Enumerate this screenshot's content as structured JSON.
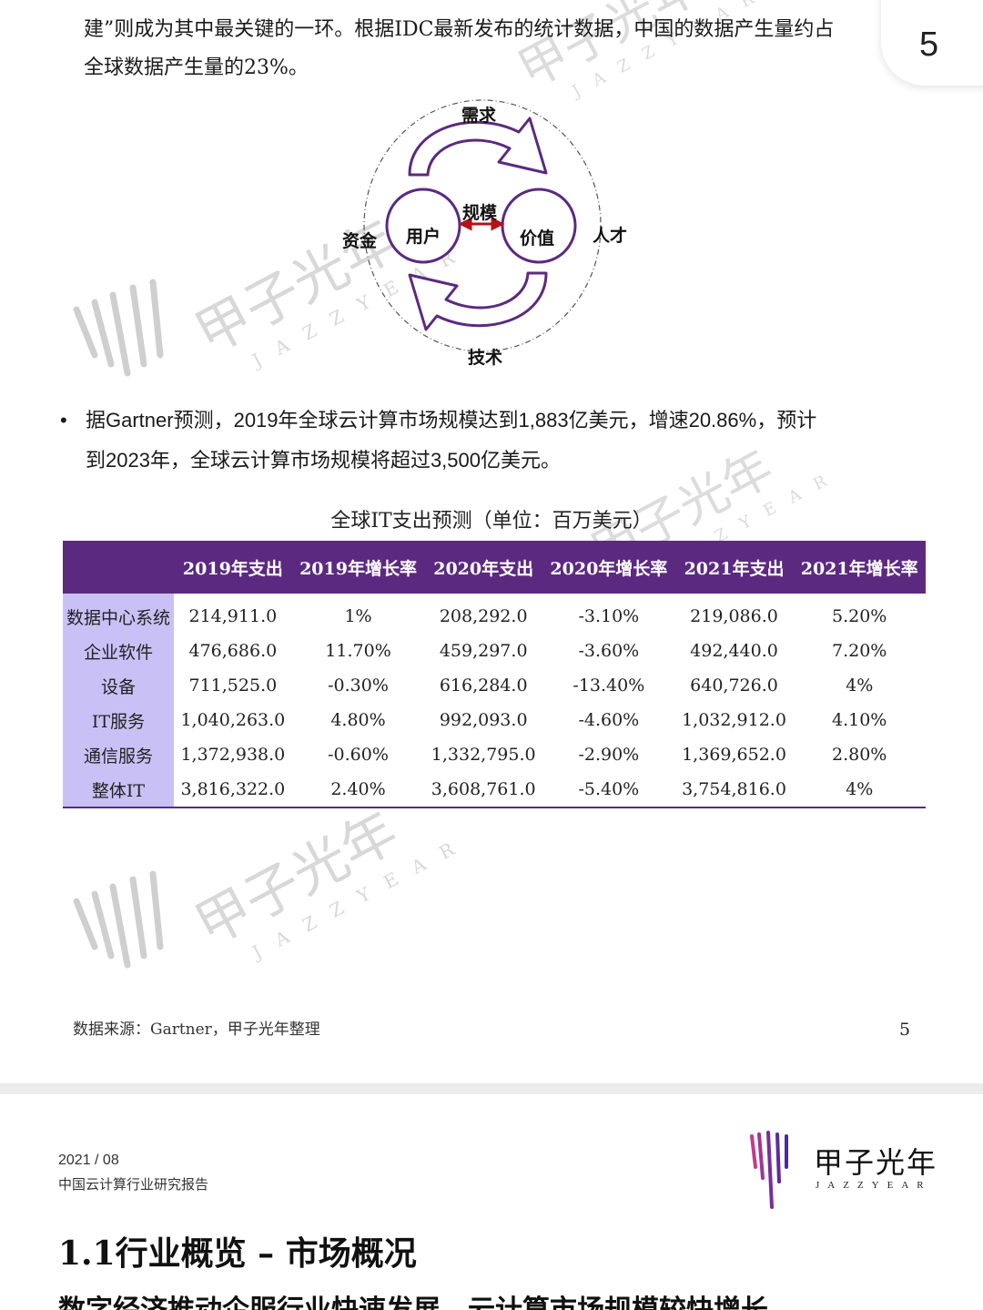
{
  "intro": {
    "line1": "建”则成为其中最关键的一环。根据IDC最新发布的统计数据，中国的数据产生量约占",
    "line2": "全球数据产生量的23%。"
  },
  "page_badge": "5",
  "watermark": {
    "cn": "甲子光年",
    "en": "JAZZYEAR"
  },
  "diagram": {
    "top": "需求",
    "bottom": "技术",
    "left": "资金",
    "right": "人才",
    "node_left": "用户",
    "node_right": "价值",
    "center": "规模",
    "colors": {
      "arrow": "#5b2a80",
      "link": "#b5121b"
    }
  },
  "bullet": {
    "line1": "据Gartner预测，2019年全球云计算市场规模达到1,883亿美元，增速20.86%，预计",
    "line2": "到2023年，全球云计算市场规模将超过3,500亿美元。"
  },
  "table": {
    "title": "全球IT支出预测（单位：百万美元）",
    "headers": [
      "",
      "2019年支出",
      "2019年增长率",
      "2020年支出",
      "2020年增长率",
      "2021年支出",
      "2021年增长率"
    ],
    "rows": [
      [
        "数据中心系统",
        "214,911.0",
        "1%",
        "208,292.0",
        "-3.10%",
        "219,086.0",
        "5.20%"
      ],
      [
        "企业软件",
        "476,686.0",
        "11.70%",
        "459,297.0",
        "-3.60%",
        "492,440.0",
        "7.20%"
      ],
      [
        "设备",
        "711,525.0",
        "-0.30%",
        "616,284.0",
        "-13.40%",
        "640,726.0",
        "4%"
      ],
      [
        "IT服务",
        "1,040,263.0",
        "4.80%",
        "992,093.0",
        "-4.60%",
        "1,032,912.0",
        "4.10%"
      ],
      [
        "通信服务",
        "1,372,938.0",
        "-0.60%",
        "1,332,795.0",
        "-2.90%",
        "1,369,652.0",
        "2.80%"
      ],
      [
        "整体IT",
        "3,816,322.0",
        "2.40%",
        "3,608,761.0",
        "-5.40%",
        "3,754,816.0",
        "4%"
      ]
    ],
    "colors": {
      "header": "#5b2a80",
      "row_header": "#c9c1f5"
    }
  },
  "source": "数据来源：Gartner，甲子光年整理",
  "page_number": "5",
  "page2": {
    "date": "2021 / 08",
    "report": "中国云计算行业研究报告",
    "logo_cn": "甲子光年",
    "logo_en": "JAZZYEAR",
    "heading": "1.1行业概览 – 市场概况",
    "subheading": "数字经济推动企服行业快速发展，云计算市场规模较快增长"
  }
}
